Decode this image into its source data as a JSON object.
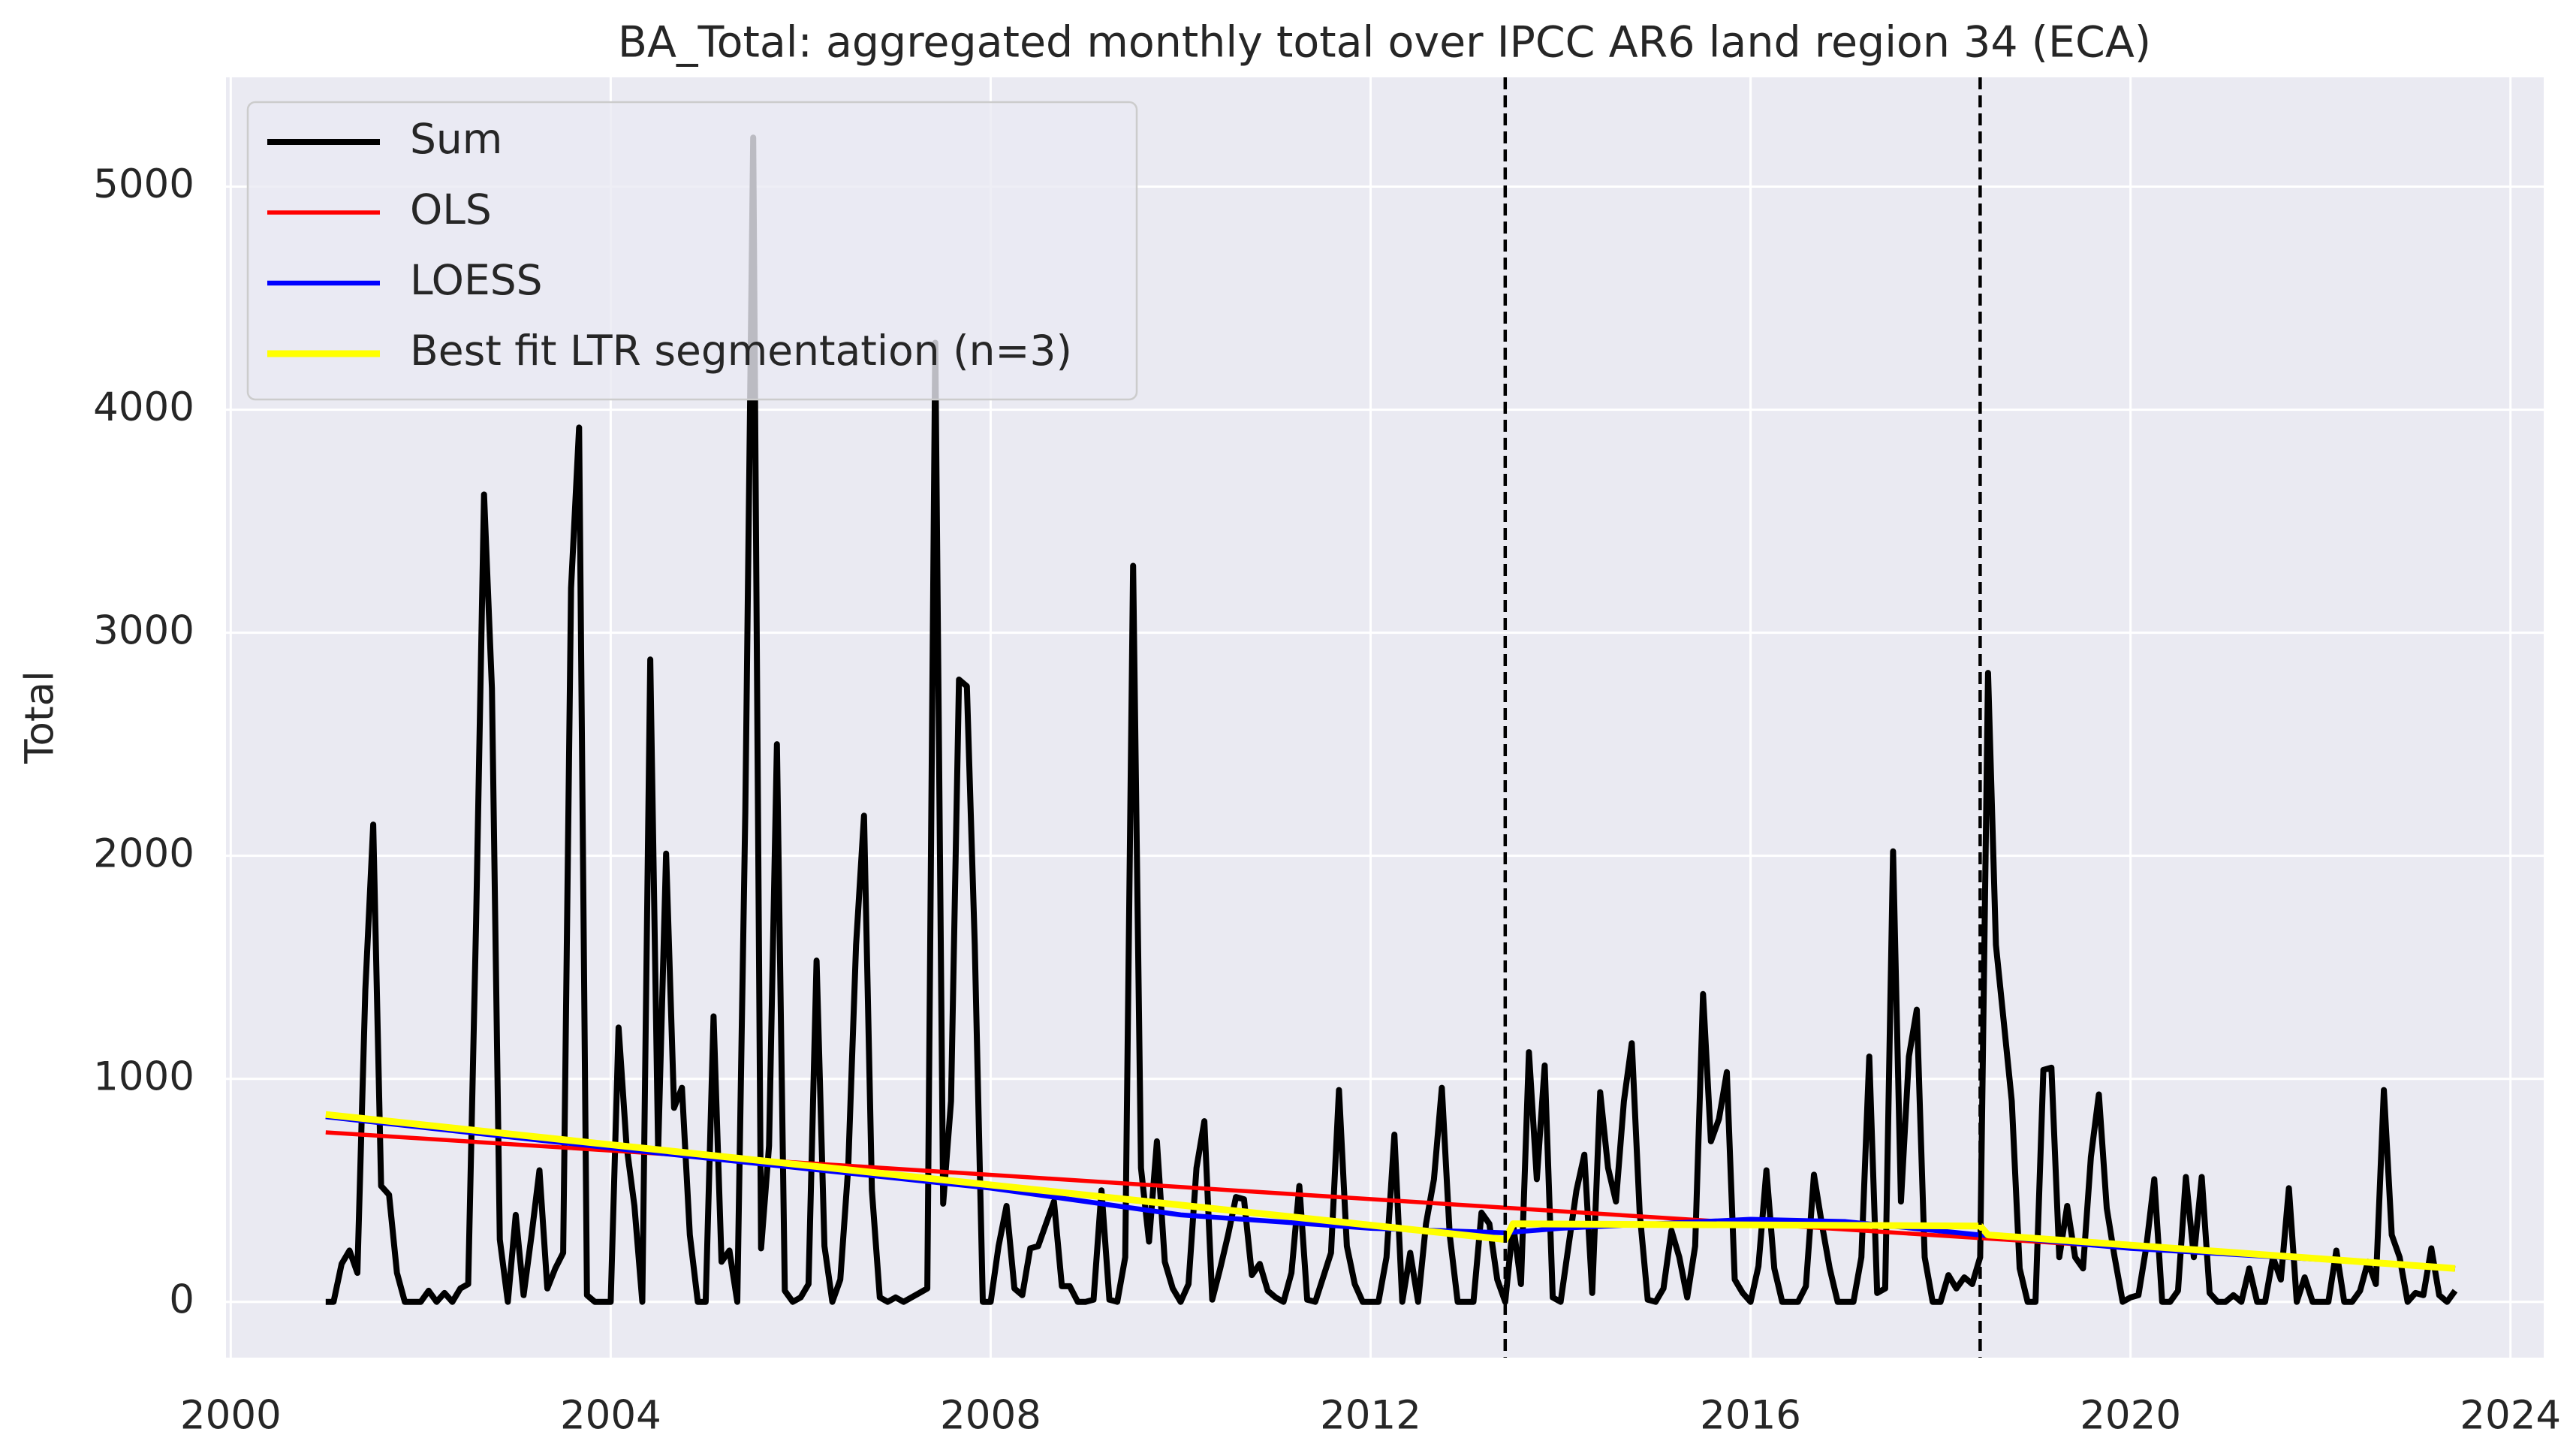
{
  "chart_data": {
    "type": "line",
    "title": "BA_Total: aggregated monthly total over IPCC AR6 land region 34 (ECA)",
    "y_label": "Total",
    "xlim": [
      1999.95,
      2024.35
    ],
    "ylim": [
      -250,
      5490
    ],
    "xticks": [
      2000,
      2004,
      2008,
      2012,
      2016,
      2020,
      2024
    ],
    "yticks": [
      0,
      1000,
      2000,
      3000,
      4000,
      5000
    ],
    "grid": true,
    "legend": "upper left",
    "vlines": [
      2013.417,
      2018.417
    ],
    "series": [
      {
        "name": "Sum",
        "color": "#000000",
        "x": [
          2001,
          2001.083,
          2001.167,
          2001.25,
          2001.333,
          2001.417,
          2001.5,
          2001.583,
          2001.667,
          2001.75,
          2001.833,
          2001.917,
          2002,
          2002.083,
          2002.167,
          2002.25,
          2002.333,
          2002.417,
          2002.5,
          2002.583,
          2002.667,
          2002.75,
          2002.833,
          2002.917,
          2003,
          2003.083,
          2003.167,
          2003.25,
          2003.333,
          2003.417,
          2003.5,
          2003.583,
          2003.667,
          2003.75,
          2003.833,
          2003.917,
          2004,
          2004.083,
          2004.167,
          2004.25,
          2004.333,
          2004.417,
          2004.5,
          2004.583,
          2004.667,
          2004.75,
          2004.833,
          2004.917,
          2005,
          2005.083,
          2005.167,
          2005.25,
          2005.333,
          2005.417,
          2005.5,
          2005.583,
          2005.667,
          2005.75,
          2005.833,
          2005.917,
          2006,
          2006.083,
          2006.167,
          2006.25,
          2006.333,
          2006.417,
          2006.5,
          2006.583,
          2006.667,
          2006.75,
          2006.833,
          2006.917,
          2007,
          2007.083,
          2007.167,
          2007.25,
          2007.333,
          2007.417,
          2007.5,
          2007.583,
          2007.667,
          2007.75,
          2007.833,
          2007.917,
          2008,
          2008.083,
          2008.167,
          2008.25,
          2008.333,
          2008.417,
          2008.5,
          2008.583,
          2008.667,
          2008.75,
          2008.833,
          2008.917,
          2009,
          2009.083,
          2009.167,
          2009.25,
          2009.333,
          2009.417,
          2009.5,
          2009.583,
          2009.667,
          2009.75,
          2009.833,
          2009.917,
          2010,
          2010.083,
          2010.167,
          2010.25,
          2010.333,
          2010.417,
          2010.5,
          2010.583,
          2010.667,
          2010.75,
          2010.833,
          2010.917,
          2011,
          2011.083,
          2011.167,
          2011.25,
          2011.333,
          2011.417,
          2011.5,
          2011.583,
          2011.667,
          2011.75,
          2011.833,
          2011.917,
          2012,
          2012.083,
          2012.167,
          2012.25,
          2012.333,
          2012.417,
          2012.5,
          2012.583,
          2012.667,
          2012.75,
          2012.833,
          2012.917,
          2013,
          2013.083,
          2013.167,
          2013.25,
          2013.333,
          2013.417,
          2013.5,
          2013.583,
          2013.667,
          2013.75,
          2013.833,
          2013.917,
          2014,
          2014.083,
          2014.167,
          2014.25,
          2014.333,
          2014.417,
          2014.5,
          2014.583,
          2014.667,
          2014.75,
          2014.833,
          2014.917,
          2015,
          2015.083,
          2015.167,
          2015.25,
          2015.333,
          2015.417,
          2015.5,
          2015.583,
          2015.667,
          2015.75,
          2015.833,
          2015.917,
          2016,
          2016.083,
          2016.167,
          2016.25,
          2016.333,
          2016.417,
          2016.5,
          2016.583,
          2016.667,
          2016.75,
          2016.833,
          2016.917,
          2017,
          2017.083,
          2017.167,
          2017.25,
          2017.333,
          2017.417,
          2017.5,
          2017.583,
          2017.667,
          2017.75,
          2017.833,
          2017.917,
          2018,
          2018.083,
          2018.167,
          2018.25,
          2018.333,
          2018.417,
          2018.5,
          2018.583,
          2018.667,
          2018.75,
          2018.833,
          2018.917,
          2019,
          2019.083,
          2019.167,
          2019.25,
          2019.333,
          2019.417,
          2019.5,
          2019.583,
          2019.667,
          2019.75,
          2019.833,
          2019.917,
          2020,
          2020.083,
          2020.167,
          2020.25,
          2020.333,
          2020.417,
          2020.5,
          2020.583,
          2020.667,
          2020.75,
          2020.833,
          2020.917,
          2021,
          2021.083,
          2021.167,
          2021.25,
          2021.333,
          2021.417,
          2021.5,
          2021.583,
          2021.667,
          2021.75,
          2021.833,
          2021.917,
          2022,
          2022.083,
          2022.167,
          2022.25,
          2022.333,
          2022.417,
          2022.5,
          2022.583,
          2022.667,
          2022.75,
          2022.833,
          2022.917,
          2023,
          2023.083,
          2023.167,
          2023.25,
          2023.333,
          2023.417
        ],
        "values": [
          0,
          0,
          170,
          230,
          130,
          1400,
          2140,
          520,
          480,
          130,
          0,
          0,
          0,
          50,
          0,
          40,
          0,
          60,
          80,
          1700,
          3620,
          2750,
          280,
          0,
          390,
          30,
          300,
          590,
          60,
          150,
          220,
          3200,
          3920,
          30,
          0,
          0,
          0,
          1230,
          700,
          430,
          0,
          2880,
          680,
          2010,
          870,
          960,
          300,
          0,
          0,
          1280,
          180,
          230,
          0,
          2200,
          5220,
          240,
          700,
          2500,
          50,
          0,
          20,
          80,
          1530,
          250,
          0,
          100,
          600,
          1600,
          2180,
          500,
          20,
          0,
          20,
          0,
          20,
          40,
          60,
          4300,
          440,
          900,
          2790,
          2760,
          1600,
          0,
          0,
          250,
          430,
          60,
          30,
          240,
          250,
          350,
          450,
          70,
          70,
          0,
          0,
          10,
          500,
          10,
          0,
          200,
          3300,
          600,
          270,
          720,
          180,
          60,
          0,
          80,
          600,
          810,
          10,
          150,
          300,
          470,
          460,
          120,
          170,
          50,
          20,
          0,
          130,
          520,
          10,
          0,
          110,
          220,
          950,
          250,
          80,
          0,
          0,
          0,
          200,
          750,
          0,
          220,
          0,
          350,
          550,
          960,
          300,
          0,
          0,
          0,
          400,
          350,
          100,
          0,
          350,
          80,
          1120,
          550,
          1060,
          20,
          0,
          250,
          500,
          660,
          40,
          940,
          600,
          450,
          900,
          1160,
          400,
          10,
          0,
          60,
          320,
          200,
          20,
          250,
          1380,
          720,
          820,
          1030,
          100,
          40,
          0,
          160,
          590,
          150,
          0,
          0,
          0,
          70,
          570,
          350,
          150,
          0,
          0,
          0,
          200,
          1100,
          40,
          60,
          2020,
          450,
          1100,
          1310,
          200,
          0,
          0,
          120,
          60,
          110,
          80,
          200,
          2820,
          1600,
          1250,
          900,
          150,
          0,
          0,
          1040,
          1050,
          200,
          430,
          200,
          150,
          650,
          930,
          420,
          200,
          0,
          20,
          30,
          250,
          550,
          0,
          0,
          50,
          560,
          200,
          560,
          40,
          0,
          0,
          30,
          0,
          150,
          0,
          0,
          200,
          100,
          510,
          0,
          110,
          0,
          0,
          0,
          230,
          0,
          0,
          50,
          180,
          80,
          950,
          300,
          200,
          0,
          40,
          30,
          240,
          30,
          0,
          50
        ]
      },
      {
        "name": "OLS",
        "color": "#ff0000",
        "x": [
          2001,
          2023.417
        ],
        "values": [
          760,
          150
        ]
      },
      {
        "name": "LOESS",
        "color": "#0000ff",
        "x": [
          2001,
          2004,
          2008,
          2010,
          2012,
          2013.417,
          2014,
          2016,
          2017,
          2018.417,
          2020,
          2022,
          2023.417
        ],
        "values": [
          830,
          690,
          510,
          390,
          330,
          310,
          330,
          370,
          360,
          300,
          240,
          190,
          150
        ]
      },
      {
        "name": "Best fit LTR segmentation (n=3)",
        "color": "#ffff00",
        "x": [
          2001,
          2013.417,
          2013.5,
          2018.417,
          2018.5,
          2023.417
        ],
        "values": [
          840,
          280,
          350,
          340,
          300,
          150
        ]
      }
    ]
  }
}
